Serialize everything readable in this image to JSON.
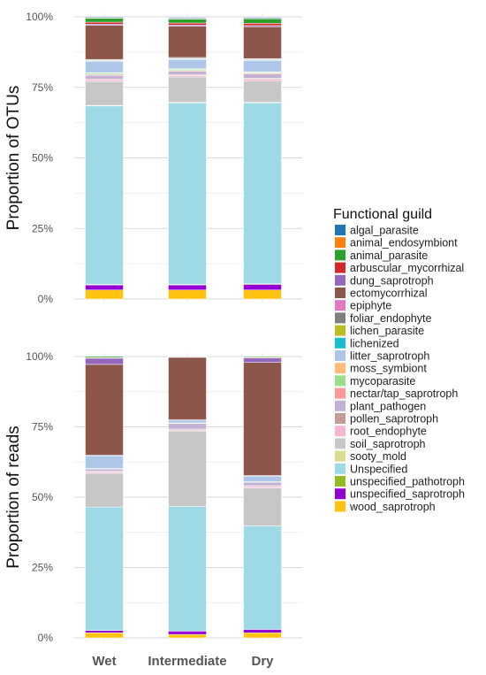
{
  "legend": {
    "title": "Functional guild",
    "position": "right",
    "items": [
      {
        "name": "algal_parasite",
        "color": "#1f77b4"
      },
      {
        "name": "animal_endosymbiont",
        "color": "#ff7f0e"
      },
      {
        "name": "animal_parasite",
        "color": "#2ca02c"
      },
      {
        "name": "arbuscular_mycorrhizal",
        "color": "#d62728"
      },
      {
        "name": "dung_saprotroph",
        "color": "#9467bd"
      },
      {
        "name": "ectomycorrhizal",
        "color": "#8c564b"
      },
      {
        "name": "epiphyte",
        "color": "#e377c2"
      },
      {
        "name": "foliar_endophyte",
        "color": "#7f7f7f"
      },
      {
        "name": "lichen_parasite",
        "color": "#bcbd22"
      },
      {
        "name": "lichenized",
        "color": "#17becf"
      },
      {
        "name": "litter_saprotroph",
        "color": "#aec7e8"
      },
      {
        "name": "moss_symbiont",
        "color": "#ffbb78"
      },
      {
        "name": "mycoparasite",
        "color": "#98df8a"
      },
      {
        "name": "nectar/tap_saprotroph",
        "color": "#ff9896"
      },
      {
        "name": "plant_pathogen",
        "color": "#c5b0d5"
      },
      {
        "name": "pollen_saprotroph",
        "color": "#c49c94"
      },
      {
        "name": "root_endophyte",
        "color": "#f7b6d2"
      },
      {
        "name": "soil_saprotroph",
        "color": "#c7c7c7"
      },
      {
        "name": "sooty_mold",
        "color": "#dbdb8d"
      },
      {
        "name": "Unspecified",
        "color": "#9edae5"
      },
      {
        "name": "unspecified_pathotroph",
        "color": "#8fbc1f"
      },
      {
        "name": "unspecified_saprotroph",
        "color": "#9400d3"
      },
      {
        "name": "wood_saprotroph",
        "color": "#ffc20e"
      }
    ]
  },
  "chart_data": [
    {
      "type": "bar",
      "stacked": true,
      "ylabel": "Proportion of OTUs",
      "xlabel": "",
      "categories": [
        "Wet",
        "Intermediate",
        "Dry"
      ],
      "show_x_tick_labels": false,
      "ylim": [
        0,
        1
      ],
      "y_ticks": [
        "0%",
        "25%",
        "50%",
        "75%",
        "100%"
      ],
      "grid": true,
      "series": [
        {
          "name": "wood_saprotroph",
          "values": [
            0.032,
            0.032,
            0.032
          ]
        },
        {
          "name": "unspecified_saprotroph",
          "values": [
            0.018,
            0.018,
            0.02
          ]
        },
        {
          "name": "unspecified_pathotroph",
          "values": [
            0.002,
            0.002,
            0.002
          ]
        },
        {
          "name": "Unspecified",
          "values": [
            0.632,
            0.643,
            0.641
          ]
        },
        {
          "name": "sooty_mold",
          "values": [
            0.002,
            0.002,
            0.002
          ]
        },
        {
          "name": "soil_saprotroph",
          "values": [
            0.085,
            0.09,
            0.075
          ]
        },
        {
          "name": "root_endophyte",
          "values": [
            0.006,
            0.005,
            0.007
          ]
        },
        {
          "name": "pollen_saprotroph",
          "values": [
            0.003,
            0.003,
            0.003
          ]
        },
        {
          "name": "plant_pathogen",
          "values": [
            0.013,
            0.012,
            0.015
          ]
        },
        {
          "name": "nectar/tap_saprotroph",
          "values": [
            0.003,
            0.003,
            0.003
          ]
        },
        {
          "name": "mycoparasite",
          "values": [
            0.004,
            0.004,
            0.003
          ]
        },
        {
          "name": "moss_symbiont",
          "values": [
            0.002,
            0.002,
            0.002
          ]
        },
        {
          "name": "litter_saprotroph",
          "values": [
            0.04,
            0.033,
            0.04
          ]
        },
        {
          "name": "lichenized",
          "values": [
            0.002,
            0.002,
            0.002
          ]
        },
        {
          "name": "lichen_parasite",
          "values": [
            0.001,
            0.001,
            0.001
          ]
        },
        {
          "name": "foliar_endophyte",
          "values": [
            0.003,
            0.003,
            0.003
          ]
        },
        {
          "name": "epiphyte",
          "values": [
            0.001,
            0.001,
            0.001
          ]
        },
        {
          "name": "ectomycorrhizal",
          "values": [
            0.121,
            0.111,
            0.113
          ]
        },
        {
          "name": "dung_saprotroph",
          "values": [
            0.004,
            0.004,
            0.004
          ]
        },
        {
          "name": "arbuscular_mycorrhizal",
          "values": [
            0.007,
            0.007,
            0.008
          ]
        },
        {
          "name": "animal_parasite",
          "values": [
            0.014,
            0.014,
            0.016
          ]
        },
        {
          "name": "animal_endosymbiont",
          "values": [
            0.002,
            0.002,
            0.002
          ]
        },
        {
          "name": "algal_parasite",
          "values": [
            0.003,
            0.003,
            0.003
          ]
        }
      ]
    },
    {
      "type": "bar",
      "stacked": true,
      "ylabel": "Proportion of reads",
      "xlabel": "",
      "categories": [
        "Wet",
        "Intermediate",
        "Dry"
      ],
      "show_x_tick_labels": true,
      "ylim": [
        0,
        1
      ],
      "y_ticks": [
        "0%",
        "25%",
        "50%",
        "75%",
        "100%"
      ],
      "grid": true,
      "series": [
        {
          "name": "wood_saprotroph",
          "values": [
            0.018,
            0.012,
            0.018
          ]
        },
        {
          "name": "unspecified_saprotroph",
          "values": [
            0.008,
            0.012,
            0.012
          ]
        },
        {
          "name": "Unspecified",
          "values": [
            0.439,
            0.443,
            0.368
          ]
        },
        {
          "name": "soil_saprotroph",
          "values": [
            0.12,
            0.268,
            0.135
          ]
        },
        {
          "name": "root_endophyte",
          "values": [
            0.005,
            0.004,
            0.005
          ]
        },
        {
          "name": "pollen_saprotroph",
          "values": [
            0.002,
            0.003,
            0.003
          ]
        },
        {
          "name": "plant_pathogen",
          "values": [
            0.008,
            0.02,
            0.012
          ]
        },
        {
          "name": "mycoparasite",
          "values": [
            0.002,
            0.002,
            0.002
          ]
        },
        {
          "name": "litter_saprotroph",
          "values": [
            0.045,
            0.01,
            0.02
          ]
        },
        {
          "name": "foliar_endophyte",
          "values": [
            0.003,
            0.001,
            0.002
          ]
        },
        {
          "name": "ectomycorrhizal",
          "values": [
            0.322,
            0.222,
            0.402
          ]
        },
        {
          "name": "dung_saprotroph",
          "values": [
            0.022,
            0.002,
            0.016
          ]
        },
        {
          "name": "arbuscular_mycorrhizal",
          "values": [
            0.002,
            0.001,
            0.002
          ]
        },
        {
          "name": "animal_parasite",
          "values": [
            0.004,
            0.0,
            0.003
          ]
        }
      ]
    }
  ]
}
